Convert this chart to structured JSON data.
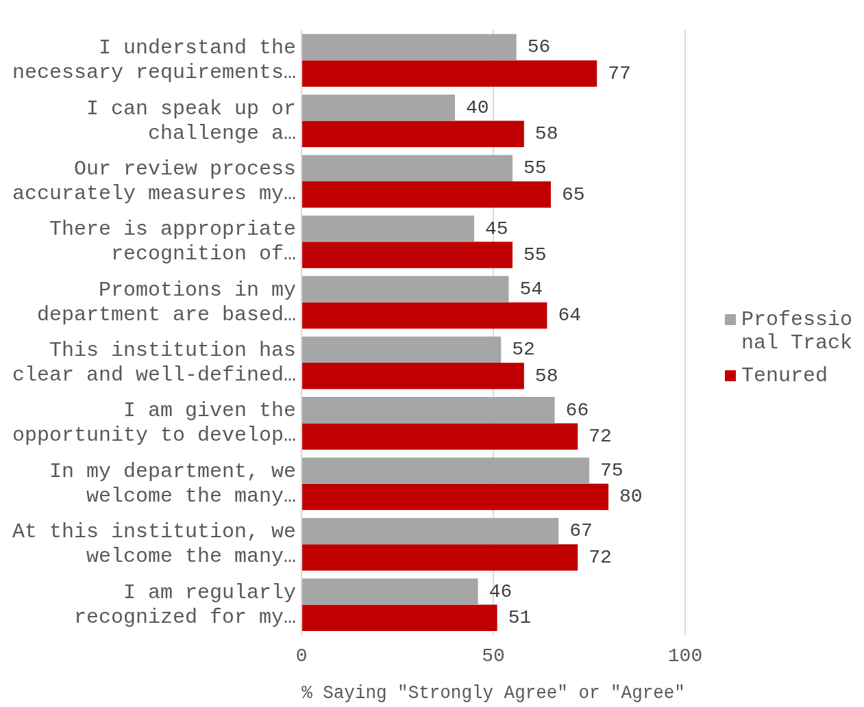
{
  "chart_data": {
    "type": "bar",
    "orientation": "horizontal",
    "xlabel": "% Saying \"Strongly Agree\" or \"Agree\"",
    "categories": [
      "I understand the necessary requirements…",
      "I can speak up or challenge a…",
      "Our review process accurately measures my…",
      "There is appropriate recognition of…",
      "Promotions in my department are based…",
      "This institution has clear and well-defined…",
      "I am given the opportunity to develop…",
      "In my department, we welcome the many…",
      "At this institution, we welcome the many…",
      "I am regularly recognized for my…"
    ],
    "series": [
      {
        "name": "Professional Track",
        "color": "#a6a6a6",
        "values": [
          56,
          40,
          55,
          45,
          54,
          52,
          66,
          75,
          67,
          46
        ]
      },
      {
        "name": "Tenured",
        "color": "#c00000",
        "values": [
          77,
          58,
          65,
          55,
          64,
          58,
          72,
          80,
          72,
          51
        ]
      }
    ],
    "xlim": [
      0,
      100
    ],
    "xticks": [
      0,
      50,
      100
    ],
    "grid": "x",
    "legend": "right",
    "data_labels": true
  }
}
